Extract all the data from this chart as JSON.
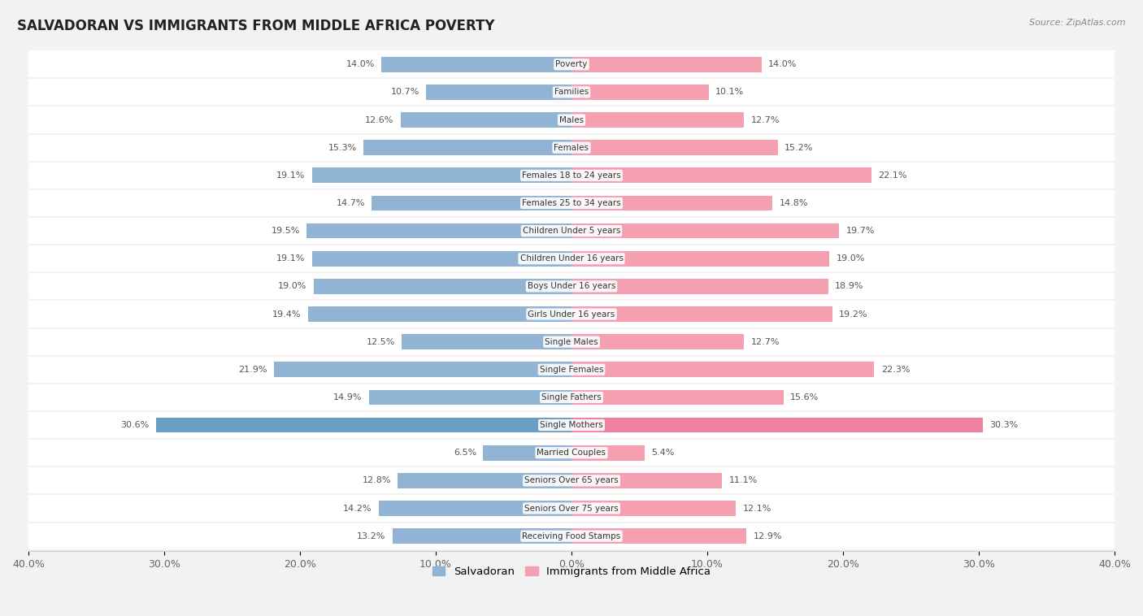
{
  "title": "SALVADORAN VS IMMIGRANTS FROM MIDDLE AFRICA POVERTY",
  "source": "Source: ZipAtlas.com",
  "categories": [
    "Poverty",
    "Families",
    "Males",
    "Females",
    "Females 18 to 24 years",
    "Females 25 to 34 years",
    "Children Under 5 years",
    "Children Under 16 years",
    "Boys Under 16 years",
    "Girls Under 16 years",
    "Single Males",
    "Single Females",
    "Single Fathers",
    "Single Mothers",
    "Married Couples",
    "Seniors Over 65 years",
    "Seniors Over 75 years",
    "Receiving Food Stamps"
  ],
  "salvadoran": [
    14.0,
    10.7,
    12.6,
    15.3,
    19.1,
    14.7,
    19.5,
    19.1,
    19.0,
    19.4,
    12.5,
    21.9,
    14.9,
    30.6,
    6.5,
    12.8,
    14.2,
    13.2
  ],
  "middle_africa": [
    14.0,
    10.1,
    12.7,
    15.2,
    22.1,
    14.8,
    19.7,
    19.0,
    18.9,
    19.2,
    12.7,
    22.3,
    15.6,
    30.3,
    5.4,
    11.1,
    12.1,
    12.9
  ],
  "salvadoran_color": "#92b4d4",
  "middle_africa_color": "#f4a0b0",
  "single_mothers_sal_color": "#6a9ec4",
  "single_mothers_mid_color": "#f080a0",
  "background_color": "#f2f2f2",
  "row_bg_color": "#ffffff",
  "axis_limit": 40.0,
  "legend_salvadoran": "Salvadoran",
  "legend_middle_africa": "Immigrants from Middle Africa",
  "xtick_labels": [
    "40.0%",
    "30.0%",
    "20.0%",
    "10.0%",
    "0.0%",
    "10.0%",
    "20.0%",
    "30.0%",
    "40.0%"
  ],
  "xtick_values": [
    -40,
    -30,
    -20,
    -10,
    0,
    10,
    20,
    30,
    40
  ]
}
